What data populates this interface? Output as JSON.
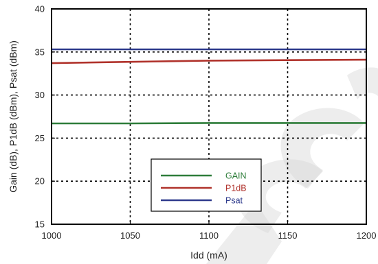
{
  "chart_data": {
    "type": "line",
    "xlabel": "Idd (mA)",
    "ylabel": "Gain (dB), P1dB (dBm), Psat (dBm)",
    "xlim": [
      1000,
      1200
    ],
    "ylim": [
      15,
      40
    ],
    "xticks": [
      1000,
      1050,
      1100,
      1150,
      1200
    ],
    "yticks": [
      15,
      20,
      25,
      30,
      35,
      40
    ],
    "grid": true,
    "grid_style": "dotted",
    "legend_position": "bottom-center",
    "series": [
      {
        "name": "GAIN",
        "color": "#2e7d3a",
        "x": [
          1000,
          1050,
          1100,
          1150,
          1200
        ],
        "y": [
          26.7,
          26.7,
          26.75,
          26.75,
          26.75
        ]
      },
      {
        "name": "P1dB",
        "color": "#b0322b",
        "x": [
          1000,
          1050,
          1100,
          1150,
          1200
        ],
        "y": [
          33.7,
          33.85,
          34.0,
          34.05,
          34.1
        ]
      },
      {
        "name": "Psat",
        "color": "#2e3a8c",
        "x": [
          1000,
          1050,
          1100,
          1150,
          1200
        ],
        "y": [
          35.3,
          35.3,
          35.3,
          35.3,
          35.3
        ]
      }
    ]
  }
}
